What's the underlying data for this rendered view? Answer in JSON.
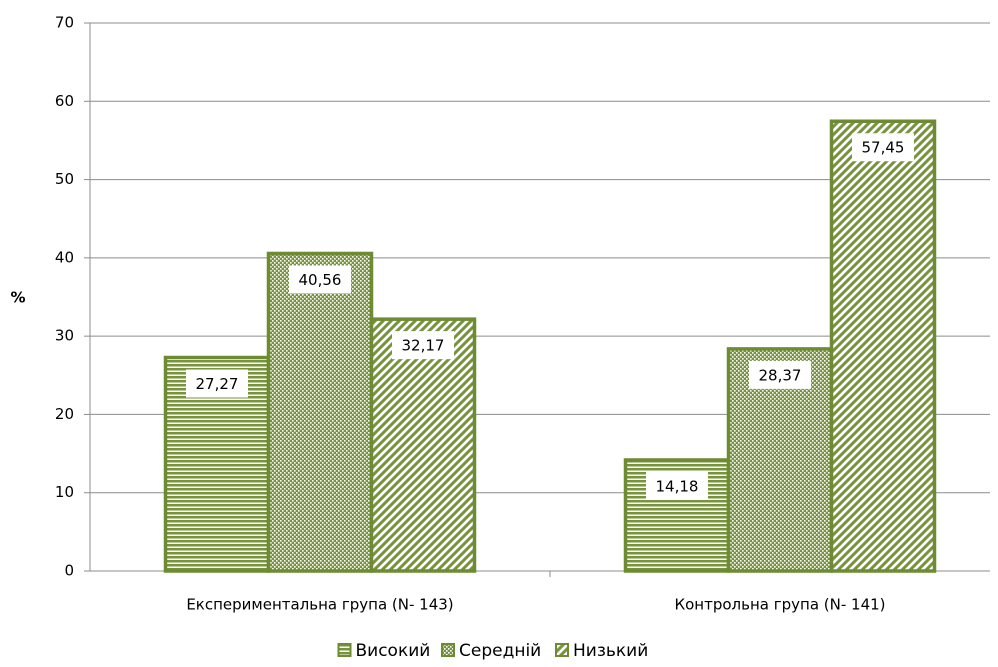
{
  "chart_data": {
    "type": "bar",
    "y_label": "%",
    "categories": [
      "Експериментальна група (N- 143)",
      "Контрольна група (N- 141)"
    ],
    "series": [
      {
        "name": "Високий",
        "color": "#77933c",
        "pattern": "horizontal",
        "values": [
          27.27,
          14.18
        ],
        "value_labels": [
          "27,27",
          "14,18"
        ]
      },
      {
        "name": "Середній",
        "color": "#77933c",
        "pattern": "cross",
        "values": [
          40.56,
          28.37
        ],
        "value_labels": [
          "40,56",
          "28,37"
        ]
      },
      {
        "name": "Низький",
        "color": "#77933c",
        "pattern": "diagonal",
        "values": [
          32.17,
          57.45
        ],
        "value_labels": [
          "32,17",
          "57,45"
        ]
      }
    ],
    "ylim": [
      0,
      70
    ],
    "yticks": [
      0,
      10,
      20,
      30,
      40,
      50,
      60,
      70
    ],
    "grid": true,
    "legend": "bottom"
  }
}
